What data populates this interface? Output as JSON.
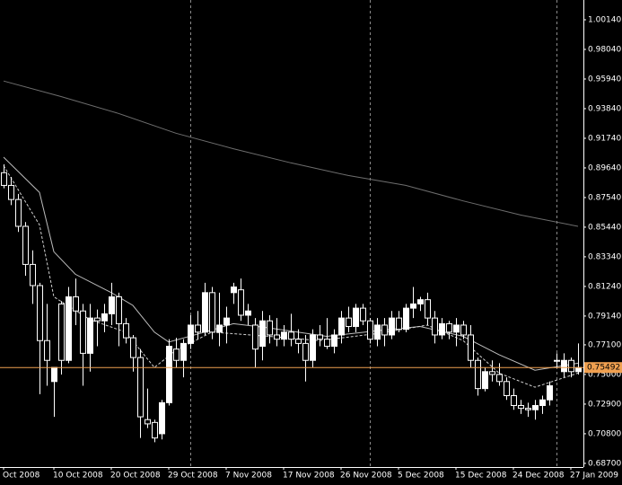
{
  "chart_data": {
    "type": "candlestick",
    "open": [
      0.893,
      0.884,
      0.874,
      0.855,
      0.828,
      0.813,
      0.774,
      0.745,
      0.8,
      0.76,
      0.805,
      0.795,
      0.765,
      0.79,
      0.788,
      0.793,
      0.805,
      0.786,
      0.776,
      0.762,
      0.718,
      0.716,
      0.708,
      0.73,
      0.768,
      0.76,
      0.772,
      0.785,
      0.78,
      0.808,
      0.78,
      0.785,
      0.808,
      0.81,
      0.792,
      0.785,
      0.77,
      0.788,
      0.778,
      0.775,
      0.78,
      0.775,
      0.772,
      0.76,
      0.778,
      0.775,
      0.77,
      0.778,
      0.79,
      0.784,
      0.797,
      0.788,
      0.775,
      0.785,
      0.778,
      0.79,
      0.782,
      0.797,
      0.8,
      0.803,
      0.79,
      0.778,
      0.786,
      0.78,
      0.785,
      0.778,
      0.76,
      0.74,
      0.752,
      0.75,
      0.745,
      0.735,
      0.728,
      0.726,
      0.725,
      0.728,
      0.732,
      0.76,
      0.752,
      0.76,
      0.752
    ],
    "high": [
      0.899,
      0.89,
      0.878,
      0.858,
      0.838,
      0.815,
      0.8,
      0.755,
      0.802,
      0.812,
      0.818,
      0.8,
      0.8,
      0.796,
      0.8,
      0.815,
      0.808,
      0.79,
      0.778,
      0.768,
      0.74,
      0.718,
      0.732,
      0.775,
      0.776,
      0.775,
      0.792,
      0.795,
      0.815,
      0.812,
      0.808,
      0.798,
      0.815,
      0.818,
      0.8,
      0.79,
      0.795,
      0.792,
      0.79,
      0.785,
      0.793,
      0.782,
      0.778,
      0.782,
      0.785,
      0.79,
      0.782,
      0.795,
      0.798,
      0.8,
      0.8,
      0.79,
      0.79,
      0.79,
      0.795,
      0.795,
      0.8,
      0.812,
      0.805,
      0.808,
      0.795,
      0.79,
      0.788,
      0.79,
      0.788,
      0.785,
      0.762,
      0.755,
      0.76,
      0.758,
      0.748,
      0.74,
      0.732,
      0.73,
      0.732,
      0.735,
      0.745,
      0.765,
      0.765,
      0.762,
      0.772
    ],
    "low": [
      0.882,
      0.87,
      0.851,
      0.82,
      0.8,
      0.736,
      0.742,
      0.72,
      0.75,
      0.758,
      0.785,
      0.742,
      0.752,
      0.77,
      0.78,
      0.785,
      0.77,
      0.772,
      0.752,
      0.705,
      0.712,
      0.702,
      0.704,
      0.728,
      0.755,
      0.748,
      0.768,
      0.775,
      0.778,
      0.775,
      0.77,
      0.772,
      0.8,
      0.788,
      0.785,
      0.755,
      0.76,
      0.772,
      0.77,
      0.77,
      0.77,
      0.765,
      0.745,
      0.755,
      0.77,
      0.768,
      0.765,
      0.772,
      0.78,
      0.78,
      0.785,
      0.772,
      0.77,
      0.77,
      0.775,
      0.78,
      0.78,
      0.79,
      0.795,
      0.785,
      0.772,
      0.775,
      0.775,
      0.77,
      0.775,
      0.755,
      0.735,
      0.738,
      0.745,
      0.742,
      0.732,
      0.725,
      0.722,
      0.72,
      0.718,
      0.722,
      0.728,
      0.755,
      0.748,
      0.748,
      0.75
    ],
    "close": [
      0.884,
      0.874,
      0.855,
      0.828,
      0.813,
      0.774,
      0.76,
      0.755,
      0.76,
      0.805,
      0.795,
      0.765,
      0.79,
      0.788,
      0.793,
      0.805,
      0.786,
      0.776,
      0.762,
      0.72,
      0.715,
      0.705,
      0.73,
      0.77,
      0.76,
      0.772,
      0.785,
      0.78,
      0.808,
      0.78,
      0.785,
      0.79,
      0.812,
      0.792,
      0.795,
      0.768,
      0.788,
      0.778,
      0.775,
      0.78,
      0.775,
      0.772,
      0.76,
      0.778,
      0.775,
      0.77,
      0.778,
      0.79,
      0.784,
      0.797,
      0.788,
      0.775,
      0.785,
      0.778,
      0.79,
      0.782,
      0.797,
      0.8,
      0.803,
      0.79,
      0.778,
      0.786,
      0.78,
      0.785,
      0.778,
      0.76,
      0.74,
      0.752,
      0.75,
      0.745,
      0.735,
      0.728,
      0.726,
      0.725,
      0.728,
      0.732,
      0.742,
      0.76,
      0.76,
      0.752,
      0.7549
    ],
    "up_color": "#ffffff",
    "down_color": "#000000",
    "candle_outline": "#ffffff",
    "series": [
      {
        "x": [
          0,
          8,
          16,
          24,
          32,
          40,
          48,
          56,
          64,
          72,
          80
        ],
        "values": [
          0.958,
          0.947,
          0.935,
          0.921,
          0.91,
          0.9,
          0.891,
          0.884,
          0.873,
          0.863,
          0.855
        ],
        "color": "#6e6e6e",
        "dash": false
      },
      {
        "x": [
          0,
          5,
          7,
          10,
          15,
          18,
          21,
          23,
          28,
          32,
          37,
          45,
          52,
          58,
          64,
          69,
          74,
          80
        ],
        "values": [
          0.904,
          0.879,
          0.837,
          0.821,
          0.808,
          0.799,
          0.78,
          0.773,
          0.78,
          0.786,
          0.783,
          0.777,
          0.781,
          0.784,
          0.777,
          0.764,
          0.753,
          0.758
        ],
        "color": "#bdbdbd",
        "dash": false
      },
      {
        "x": [
          0,
          5,
          7,
          12,
          17,
          21,
          24,
          29,
          37,
          44,
          52,
          59,
          64,
          69,
          74,
          80
        ],
        "values": [
          0.898,
          0.856,
          0.805,
          0.789,
          0.78,
          0.755,
          0.767,
          0.78,
          0.777,
          0.774,
          0.779,
          0.785,
          0.774,
          0.751,
          0.741,
          0.751
        ],
        "color": "#d0d0d0",
        "dash": true
      }
    ],
    "xlim": [
      -0.5,
      80.75
    ],
    "ylim": [
      0.6844,
      1.0154
    ],
    "xticks": [
      {
        "value": 0,
        "label": "Oct 2008"
      },
      {
        "value": 7,
        "label": "10 Oct 2008"
      },
      {
        "value": 15,
        "label": "20 Oct 2008"
      },
      {
        "value": 23,
        "label": "29 Oct 2008"
      },
      {
        "value": 31,
        "label": "7 Nov 2008"
      },
      {
        "value": 39,
        "label": "17 Nov 2008"
      },
      {
        "value": 47,
        "label": "26 Nov 2008"
      },
      {
        "value": 55,
        "label": "5 Dec 2008"
      },
      {
        "value": 63,
        "label": "15 Dec 2008"
      },
      {
        "value": 71,
        "label": "24 Dec 2008"
      },
      {
        "value": 79,
        "label": "27 Jan 2009"
      }
    ],
    "yticks": [
      {
        "value": 1.0014,
        "label": "1.00140"
      },
      {
        "value": 0.9804,
        "label": "0.98040"
      },
      {
        "value": 0.9594,
        "label": "0.95940"
      },
      {
        "value": 0.9384,
        "label": "0.93840"
      },
      {
        "value": 0.9174,
        "label": "0.91740"
      },
      {
        "value": 0.8964,
        "label": "0.89640"
      },
      {
        "value": 0.8754,
        "label": "0.87540"
      },
      {
        "value": 0.8544,
        "label": "0.85440"
      },
      {
        "value": 0.8334,
        "label": "0.83340"
      },
      {
        "value": 0.8124,
        "label": "0.81240"
      },
      {
        "value": 0.7914,
        "label": "0.79140"
      },
      {
        "value": 0.771,
        "label": "0.77100"
      },
      {
        "value": 0.75,
        "label": "0.75000"
      },
      {
        "value": 0.729,
        "label": "0.72900"
      },
      {
        "value": 0.708,
        "label": "0.70800"
      },
      {
        "value": 0.687,
        "label": "0.68700"
      }
    ],
    "period_separators": [
      26,
      51,
      77
    ],
    "current_price": 0.75492,
    "current_price_color": "#f0a050"
  }
}
